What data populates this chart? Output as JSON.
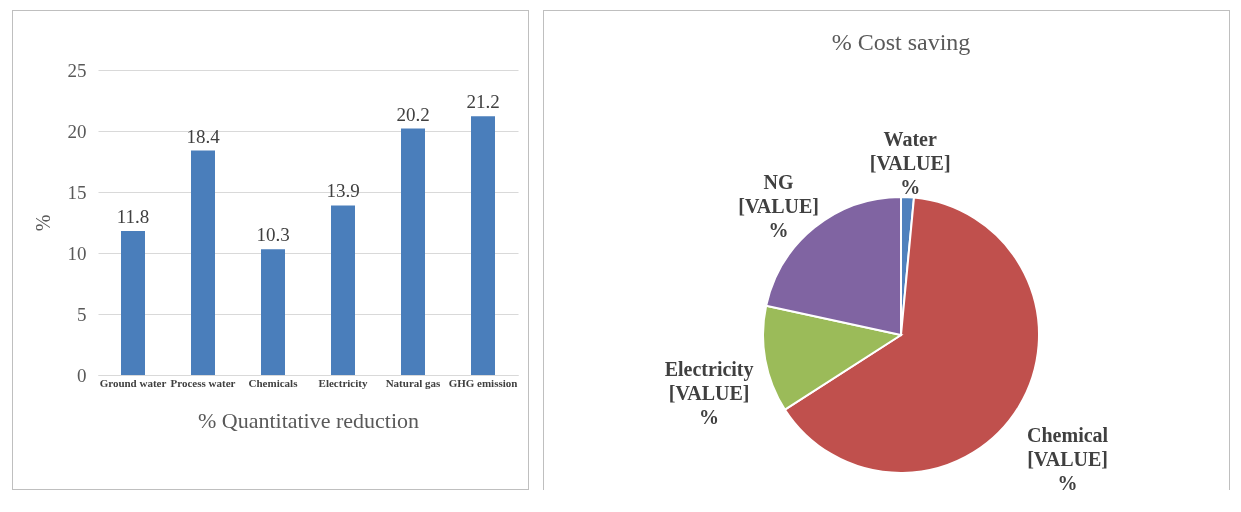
{
  "chart_data": [
    {
      "type": "bar",
      "xlabel": "% Quantitative reduction",
      "ylabel": "%",
      "categories": [
        "Ground water",
        "Process water",
        "Chemicals",
        "Electricity",
        "Natural gas",
        "GHG emission"
      ],
      "values": [
        11.8,
        18.4,
        10.3,
        13.9,
        20.2,
        21.2
      ],
      "color": "#4a7ebb",
      "ylim": [
        0,
        25
      ],
      "yticks": [
        0,
        5,
        10,
        15,
        20,
        25
      ],
      "grid": "y",
      "data_labels": true
    },
    {
      "type": "pie",
      "title": "% Cost saving",
      "categories": [
        "Water",
        "Chemical",
        "Electricity",
        "NG"
      ],
      "values": [
        1.5,
        64.4,
        12.5,
        21.6
      ],
      "colors": [
        "#4f81bd",
        "#c0504d",
        "#9bbb59",
        "#8064a2"
      ],
      "value_labels": [
        "[VALUE] %",
        "[VALUE] %",
        "[VALUE] %",
        "[VALUE] %"
      ]
    }
  ]
}
